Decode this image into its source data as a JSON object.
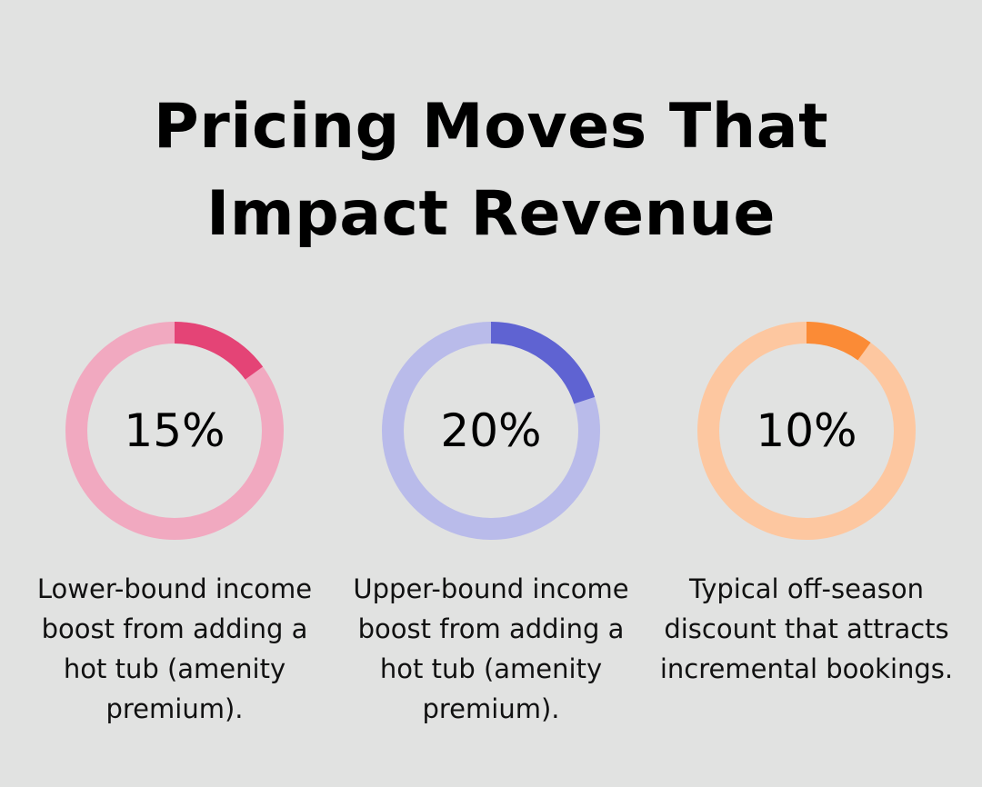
{
  "title": "Pricing Moves That Impact Revenue",
  "chart_data": {
    "type": "pie",
    "charts": [
      {
        "label": "15%",
        "value": 15,
        "caption": "Lower-bound income boost from adding a hot tub (amenity premium).",
        "color": "#e44476",
        "track_color": "#f1a9c0"
      },
      {
        "label": "20%",
        "value": 20,
        "caption": "Upper-bound income boost from adding a hot tub (amenity premium).",
        "color": "#5f63d2",
        "track_color": "#b9bbea"
      },
      {
        "label": "10%",
        "value": 10,
        "caption": "Typical off-season discount that attracts incremental bookings.",
        "color": "#fb8b36",
        "track_color": "#fdc7a0"
      }
    ]
  }
}
